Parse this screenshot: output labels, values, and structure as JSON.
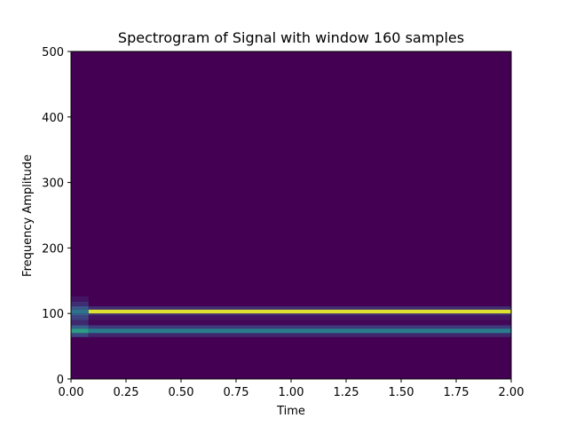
{
  "chart_data": {
    "type": "heatmap",
    "title": "Spectrogram of Signal with window 160 samples",
    "xlabel": "Time",
    "ylabel": "Frequency Amplitude",
    "xlim": [
      0.0,
      2.0
    ],
    "ylim": [
      0,
      500
    ],
    "x_ticks": [
      "0.00",
      "0.25",
      "0.50",
      "0.75",
      "1.00",
      "1.25",
      "1.50",
      "1.75",
      "2.00"
    ],
    "y_ticks": [
      "0",
      "100",
      "200",
      "300",
      "400",
      "500"
    ],
    "grid": false,
    "colormap": "viridis",
    "background_color": "#440154",
    "time_bins": [
      0.0,
      0.08,
      2.0
    ],
    "frequency_bands": [
      {
        "f0": 64,
        "f1": 70,
        "levels": [
          0.22,
          0.12
        ]
      },
      {
        "f0": 70,
        "f1": 77,
        "levels": [
          0.55,
          0.42
        ]
      },
      {
        "f0": 77,
        "f1": 82,
        "levels": [
          0.3,
          0.18
        ]
      },
      {
        "f0": 82,
        "f1": 90,
        "levels": [
          0.12,
          0.02
        ]
      },
      {
        "f0": 90,
        "f1": 97,
        "levels": [
          0.2,
          0.06
        ]
      },
      {
        "f0": 97,
        "f1": 100,
        "levels": [
          0.3,
          0.14
        ]
      },
      {
        "f0": 100,
        "f1": 106,
        "levels": [
          0.38,
          0.95
        ]
      },
      {
        "f0": 106,
        "f1": 111,
        "levels": [
          0.28,
          0.14
        ]
      },
      {
        "f0": 111,
        "f1": 118,
        "levels": [
          0.14,
          0.0
        ]
      },
      {
        "f0": 118,
        "f1": 126,
        "levels": [
          0.06,
          0.0
        ]
      }
    ]
  }
}
